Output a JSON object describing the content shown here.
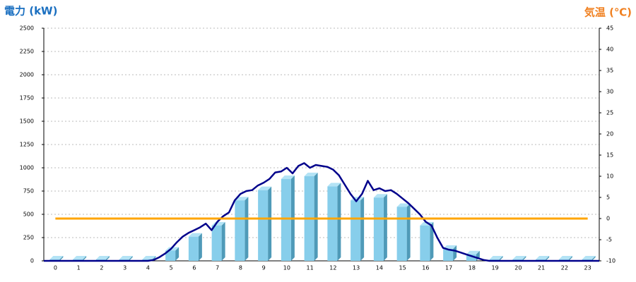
{
  "chart_data": {
    "type": "bar",
    "y_label": "電力 (kW)",
    "y2_label": "気温 (℃)",
    "categories": [
      0,
      1,
      2,
      3,
      4,
      5,
      6,
      7,
      8,
      9,
      10,
      11,
      12,
      13,
      14,
      15,
      16,
      17,
      18,
      19,
      20,
      21,
      22,
      23
    ],
    "xlim": [
      -0.5,
      23.5
    ],
    "ylim": [
      0,
      2500
    ],
    "yticks": [
      0,
      250,
      500,
      750,
      1000,
      1250,
      1500,
      1750,
      2000,
      2250,
      2500
    ],
    "y2lim": [
      -10,
      45
    ],
    "y2ticks": [
      -10,
      -5,
      0,
      5,
      10,
      15,
      20,
      25,
      30,
      35,
      40,
      45
    ],
    "grid": true,
    "series": [
      {
        "type": "bar",
        "color": "#87ceeb",
        "values": [
          15,
          15,
          15,
          15,
          15,
          110,
          260,
          380,
          650,
          760,
          880,
          910,
          800,
          650,
          680,
          580,
          380,
          130,
          70,
          15,
          15,
          15,
          15,
          15
        ]
      },
      {
        "type": "line",
        "color": "#00008b",
        "x": [
          -0.5,
          4,
          4.25,
          4.5,
          4.75,
          5,
          5.25,
          5.5,
          5.75,
          6,
          6.25,
          6.5,
          6.75,
          7,
          7.25,
          7.5,
          7.75,
          8,
          8.25,
          8.5,
          8.75,
          9,
          9.25,
          9.5,
          9.75,
          10,
          10.25,
          10.5,
          10.75,
          11,
          11.25,
          11.5,
          11.75,
          12,
          12.25,
          12.5,
          12.75,
          13,
          13.25,
          13.5,
          13.75,
          14,
          14.25,
          14.5,
          14.75,
          15,
          15.25,
          15.5,
          15.75,
          16,
          16.25,
          16.5,
          16.75,
          17,
          17.25,
          17.5,
          17.75,
          18,
          18.25,
          18.5,
          18.75,
          23.5
        ],
        "values": [
          0,
          0,
          10,
          40,
          80,
          130,
          200,
          260,
          300,
          330,
          360,
          400,
          330,
          420,
          480,
          520,
          650,
          720,
          750,
          760,
          810,
          840,
          880,
          950,
          960,
          1000,
          940,
          1020,
          1050,
          1000,
          1030,
          1020,
          1010,
          980,
          920,
          820,
          720,
          640,
          720,
          860,
          760,
          780,
          750,
          760,
          720,
          670,
          620,
          560,
          500,
          420,
          380,
          250,
          140,
          120,
          110,
          90,
          70,
          50,
          30,
          10,
          0,
          0
        ]
      },
      {
        "type": "line",
        "axis": "y2",
        "color": "#ffa500",
        "values": [
          0,
          0,
          0,
          0,
          0,
          0,
          0,
          0,
          0,
          0,
          0,
          0,
          0,
          0,
          0,
          0,
          0,
          0,
          0,
          0,
          0,
          0,
          0,
          0
        ]
      }
    ]
  }
}
